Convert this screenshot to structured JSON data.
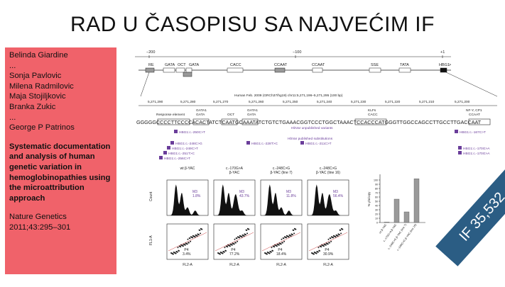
{
  "slide": {
    "title": "RAD U ČASOPISU SA NAJVEĆIM IF"
  },
  "authors_box": {
    "lines": [
      "Belinda Giardine",
      "...",
      "Sonja Pavlovic",
      "Milena Radmilovic",
      "Maja Stojiljkovic",
      "Branka Zukic",
      "...",
      "George P Patrinos"
    ],
    "paper_title": "Systematic documentation and analysis of human genetic variation in hemoglobinopathies using the microattribution approach",
    "journal": "Nature Genetics",
    "citation": "2011;43:295–301",
    "bg_color": "#f0626a"
  },
  "impact_factor": {
    "label": "IF 35,532",
    "color": "#2b5d84"
  },
  "figure": {
    "promoter": {
      "positions": [
        "−200",
        "−100",
        "+1"
      ],
      "elements": [
        "RE",
        "GATA",
        "OCT",
        "GATA",
        "CACC",
        "CCAAT",
        "CCAAT",
        "SSE",
        "TATA",
        "HBG1"
      ],
      "arrow": ">"
    },
    "genome": {
      "header": "Human Feb. 2009 (GRCh37/hg19)   chr11:5,271,196–5,271,295 (100 bp)",
      "coords": [
        "5,271,290",
        "5,271,280",
        "5,271,270",
        "5,271,260",
        "5,271,250",
        "5,271,240",
        "5,271,230",
        "5,271,220",
        "5,271,210",
        "5,271,200"
      ],
      "sequence": "GGGGGCCCCTTCCCCACACTATCTCAATGCAAATATCTGTCTGAAACGGTCCCTGGCTAAACTCCACCCATGGGTTGGCCAGCCTTGCCTTGACCAAT",
      "annotations": [
        "Response element",
        "GATA1",
        "GATA",
        "OCT",
        "GATA1",
        "GATA",
        "KLFs",
        "CACC",
        "NF-Y, CP1",
        "CCAAT"
      ],
      "track_labels": [
        "HbVar unpublished variants",
        "HbVar published substitutions"
      ],
      "variants": [
        "HBG1:c.-250C>T",
        "HBG1:c.-248C>G",
        "HBG1:c.-249C>T",
        "HBG1:c.-251T>C",
        "HBG1:c.-256C>T",
        "HBG1:c.-228T>C",
        "HBG1:c.-211C>T",
        "HBG1:c.-167C>T",
        "HBG1:c.-170G>A",
        "HBG1:c.-170G>A"
      ]
    },
    "flow": {
      "columns": [
        "wt β-YAC",
        "c.-170G>A\nβ-YAC",
        "c.-248C>G\nβ-YAC (line 7)",
        "c.-248C>G\nβ-YAC (line 16)"
      ],
      "m3_label": "M3",
      "m3_values": [
        "1.8%",
        "43.7%",
        "11.8%",
        "56.4%"
      ],
      "p4_label": "P4",
      "p4_values": [
        "3.4%",
        "77.2%",
        "18.4%",
        "30.9%"
      ],
      "hist_ylabel": "Count",
      "scatter_ylabel": "FL1-A",
      "scatter_xlabel": "FL2-A"
    },
    "bar": {
      "ylabel": "% γ/α/copy",
      "yticks": [
        "0",
        "10",
        "20",
        "30",
        "40",
        "50",
        "60",
        "70",
        "80",
        "90",
        "100"
      ],
      "categories": [
        "wt β-YAC",
        "c.-170G>A β-YAC",
        "c.-248C>G β-YAC (line 7)",
        "c.-248C>G β-YAC (line 16)"
      ],
      "values": [
        1,
        55,
        25,
        103
      ],
      "ylim": [
        0,
        110
      ]
    }
  }
}
